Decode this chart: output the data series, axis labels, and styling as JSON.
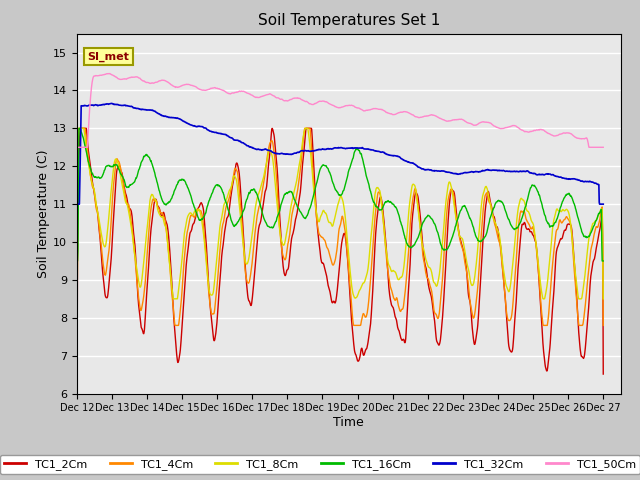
{
  "title": "Soil Temperatures Set 1",
  "xlabel": "Time",
  "ylabel": "Soil Temperature (C)",
  "ylim": [
    6.0,
    15.5
  ],
  "yticks": [
    6.0,
    7.0,
    8.0,
    9.0,
    10.0,
    11.0,
    12.0,
    13.0,
    14.0,
    15.0
  ],
  "xlim_days": [
    0,
    15.5
  ],
  "xtick_days": [
    0,
    1,
    2,
    3,
    4,
    5,
    6,
    7,
    8,
    9,
    10,
    11,
    12,
    13,
    14,
    15
  ],
  "xtick_labels": [
    "Dec 12",
    "Dec 13",
    "Dec 14",
    "Dec 15",
    "Dec 16",
    "Dec 17",
    "Dec 18",
    "Dec 19",
    "Dec 20",
    "Dec 21",
    "Dec 22",
    "Dec 23",
    "Dec 24",
    "Dec 25",
    "Dec 26",
    "Dec 27"
  ],
  "series_colors": {
    "TC1_2Cm": "#cc0000",
    "TC1_4Cm": "#ff8800",
    "TC1_8Cm": "#dddd00",
    "TC1_16Cm": "#00bb00",
    "TC1_32Cm": "#0000cc",
    "TC1_50Cm": "#ff88cc"
  },
  "bg_color": "#e8e8e8",
  "annotation_text": "SI_met",
  "annotation_bg": "#ffff99",
  "annotation_border": "#999900"
}
